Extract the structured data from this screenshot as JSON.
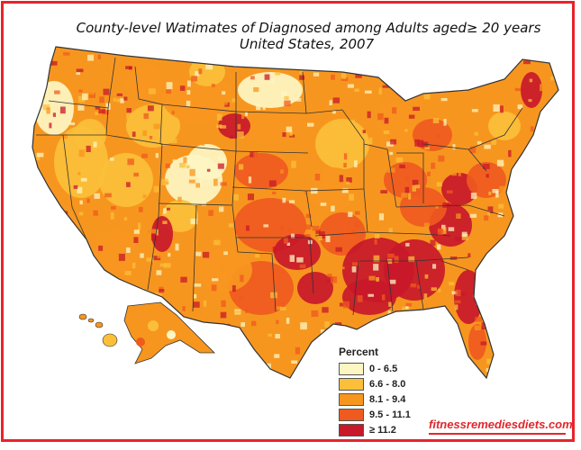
{
  "title": {
    "line1": "County-level Watimates of Diagnosed among Adults aged≥ 20 years",
    "line2": "United States, 2007"
  },
  "legend": {
    "title": "Percent",
    "items": [
      {
        "label": "0 - 6.5",
        "color": "#fdf6c3"
      },
      {
        "label": "6.6 - 8.0",
        "color": "#fbbf3a"
      },
      {
        "label": "8.1 - 9.4",
        "color": "#f7961f"
      },
      {
        "label": "9.5 - 11.1",
        "color": "#ef5a1f"
      },
      {
        "label": "≥ 11.2",
        "color": "#c8182a"
      }
    ]
  },
  "watermark": "fitnessremediesdiets.com",
  "colors": {
    "border": "#e8232a",
    "state_lines": "#333333"
  }
}
